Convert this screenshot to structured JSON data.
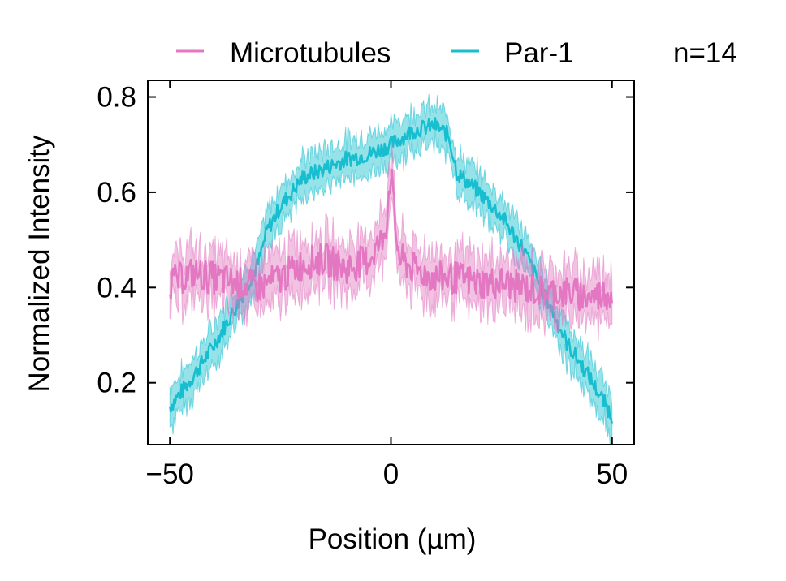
{
  "chart_data": {
    "type": "line",
    "title": "",
    "xlabel": "Position (µm)",
    "ylabel": "Normalized Intensity",
    "xlim": [
      -55,
      55
    ],
    "ylim": [
      0.07,
      0.835
    ],
    "xticks": [
      -50,
      0,
      50
    ],
    "xtick_labels": [
      "−50",
      "0",
      "50"
    ],
    "yticks": [
      0.2,
      0.4,
      0.6,
      0.8
    ],
    "ytick_labels": [
      "0.2",
      "0.4",
      "0.6",
      "0.8"
    ],
    "grid": false,
    "legend_position": "top",
    "annotation": "n=14",
    "series": [
      {
        "name": "Microtubules",
        "color": "#e377c2",
        "x": [
          -50,
          -45,
          -40,
          -35,
          -30,
          -25,
          -20,
          -15,
          -10,
          -5,
          -2,
          -1,
          0,
          1,
          2,
          5,
          10,
          15,
          20,
          25,
          30,
          35,
          40,
          45,
          50
        ],
        "y": [
          0.41,
          0.43,
          0.42,
          0.41,
          0.4,
          0.42,
          0.45,
          0.46,
          0.44,
          0.46,
          0.5,
          0.54,
          0.65,
          0.52,
          0.46,
          0.44,
          0.42,
          0.42,
          0.41,
          0.41,
          0.4,
          0.39,
          0.39,
          0.38,
          0.39
        ],
        "band": 0.05
      },
      {
        "name": "Par-1",
        "color": "#17becf",
        "x": [
          -50,
          -45,
          -40,
          -35,
          -30,
          -28,
          -25,
          -20,
          -15,
          -10,
          -5,
          0,
          5,
          10,
          13,
          15,
          20,
          25,
          30,
          35,
          40,
          45,
          50
        ],
        "y": [
          0.15,
          0.21,
          0.28,
          0.36,
          0.45,
          0.52,
          0.57,
          0.63,
          0.65,
          0.67,
          0.68,
          0.7,
          0.73,
          0.74,
          0.72,
          0.64,
          0.6,
          0.55,
          0.48,
          0.38,
          0.28,
          0.21,
          0.13
        ],
        "band": 0.04
      }
    ]
  }
}
